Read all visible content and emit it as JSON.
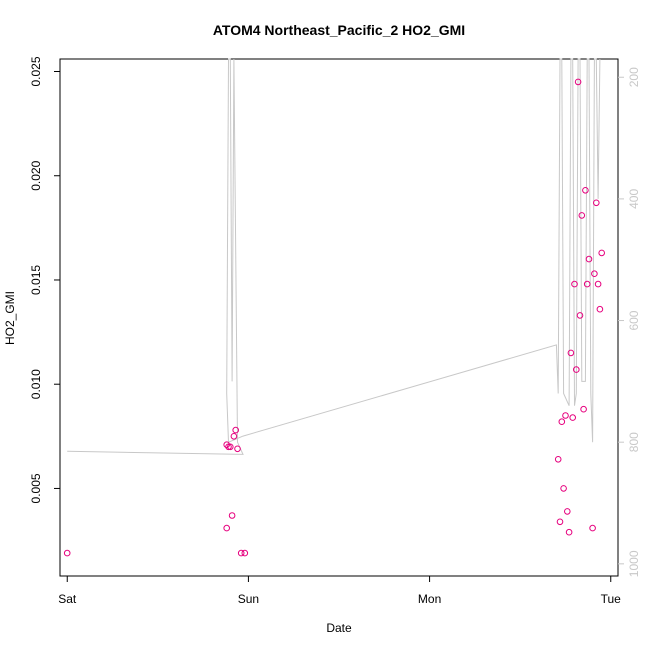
{
  "chart_data": {
    "type": "scatter",
    "title": "ATOM4 Northeast_Pacific_2 HO2_GMI",
    "xlabel": "Date",
    "ylabel": "HO2_GMI",
    "x_unit": "days since Sat 00:00",
    "xlim": [
      -0.04,
      3.04
    ],
    "ylim": [
      0.0008,
      0.0256
    ],
    "y_ticks": [
      0.005,
      0.01,
      0.015,
      0.02,
      0.025
    ],
    "y_tick_labels": [
      "0.005",
      "0.010",
      "0.015",
      "0.020",
      "0.025"
    ],
    "x_ticks": [
      0,
      1,
      2,
      3
    ],
    "x_tick_labels": [
      "Sat",
      "Sun",
      "Mon",
      "Tue"
    ],
    "right_axis": {
      "ticks": [
        200,
        400,
        600,
        800,
        1000
      ],
      "tick_labels": [
        "200",
        "400",
        "600",
        "800",
        "1000"
      ],
      "inverted": true,
      "color": "#c8c8c8"
    },
    "right_range": [
      170,
      1020
    ],
    "grid": false,
    "series": [
      {
        "marker": "open-circle",
        "color": "#e6007e",
        "points": [
          {
            "x": 0.0,
            "y": 0.0019
          },
          {
            "x": 0.88,
            "y": 0.0031
          },
          {
            "x": 0.88,
            "y": 0.0071
          },
          {
            "x": 0.89,
            "y": 0.007
          },
          {
            "x": 0.9,
            "y": 0.007
          },
          {
            "x": 0.91,
            "y": 0.0037
          },
          {
            "x": 0.92,
            "y": 0.0075
          },
          {
            "x": 0.93,
            "y": 0.0078
          },
          {
            "x": 0.94,
            "y": 0.0069
          },
          {
            "x": 0.96,
            "y": 0.0019
          },
          {
            "x": 0.98,
            "y": 0.0019
          },
          {
            "x": 2.71,
            "y": 0.0064
          },
          {
            "x": 2.72,
            "y": 0.0034
          },
          {
            "x": 2.73,
            "y": 0.0082
          },
          {
            "x": 2.74,
            "y": 0.005
          },
          {
            "x": 2.75,
            "y": 0.0085
          },
          {
            "x": 2.76,
            "y": 0.0039
          },
          {
            "x": 2.77,
            "y": 0.0029
          },
          {
            "x": 2.78,
            "y": 0.0115
          },
          {
            "x": 2.79,
            "y": 0.0084
          },
          {
            "x": 2.8,
            "y": 0.0148
          },
          {
            "x": 2.81,
            "y": 0.0107
          },
          {
            "x": 2.82,
            "y": 0.0245
          },
          {
            "x": 2.83,
            "y": 0.0133
          },
          {
            "x": 2.84,
            "y": 0.0181
          },
          {
            "x": 2.85,
            "y": 0.0088
          },
          {
            "x": 2.86,
            "y": 0.0193
          },
          {
            "x": 2.87,
            "y": 0.0148
          },
          {
            "x": 2.88,
            "y": 0.016
          },
          {
            "x": 2.9,
            "y": 0.0031
          },
          {
            "x": 2.91,
            "y": 0.0153
          },
          {
            "x": 2.92,
            "y": 0.0187
          },
          {
            "x": 2.93,
            "y": 0.0148
          },
          {
            "x": 2.94,
            "y": 0.0136
          },
          {
            "x": 2.95,
            "y": 0.0163
          }
        ]
      }
    ],
    "altitude_trace": {
      "color": "#c8c8c8",
      "points": [
        {
          "x": 0.0,
          "y": 815
        },
        {
          "x": 0.97,
          "y": 820
        },
        {
          "x": 0.94,
          "y": 800
        },
        {
          "x": 0.92,
          "y": 130
        },
        {
          "x": 0.91,
          "y": 700
        },
        {
          "x": 0.9,
          "y": 130
        },
        {
          "x": 0.89,
          "y": 130
        },
        {
          "x": 0.88,
          "y": 720
        },
        {
          "x": 0.89,
          "y": 800
        },
        {
          "x": 0.97,
          "y": 790
        },
        {
          "x": 2.7,
          "y": 640
        },
        {
          "x": 2.71,
          "y": 720
        },
        {
          "x": 2.72,
          "y": 130
        },
        {
          "x": 2.73,
          "y": 130
        },
        {
          "x": 2.74,
          "y": 720
        },
        {
          "x": 2.77,
          "y": 740
        },
        {
          "x": 2.78,
          "y": 130
        },
        {
          "x": 2.79,
          "y": 130
        },
        {
          "x": 2.8,
          "y": 740
        },
        {
          "x": 2.81,
          "y": 720
        },
        {
          "x": 2.82,
          "y": 130
        },
        {
          "x": 2.83,
          "y": 130
        },
        {
          "x": 2.84,
          "y": 700
        },
        {
          "x": 2.86,
          "y": 700
        },
        {
          "x": 2.87,
          "y": 130
        },
        {
          "x": 2.88,
          "y": 130
        },
        {
          "x": 2.89,
          "y": 720
        },
        {
          "x": 2.9,
          "y": 800
        },
        {
          "x": 2.91,
          "y": 130
        },
        {
          "x": 2.92,
          "y": 130
        },
        {
          "x": 2.93,
          "y": 400
        },
        {
          "x": 2.94,
          "y": 130
        }
      ]
    }
  }
}
